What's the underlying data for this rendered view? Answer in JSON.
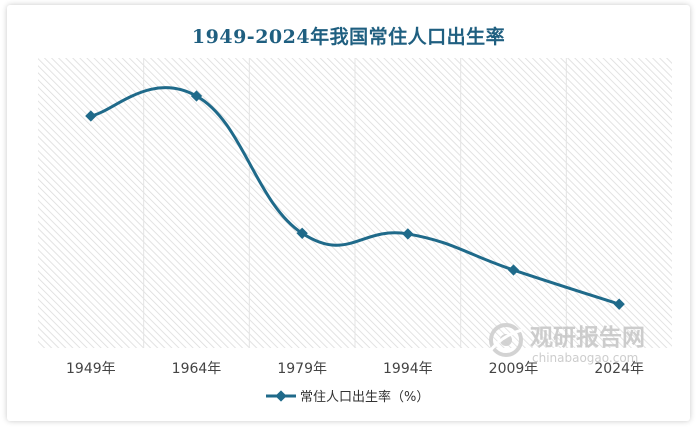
{
  "chart_data": {
    "type": "line",
    "title": "1949-2024年我国常住人口出生率",
    "categories": [
      "1949年",
      "1964年",
      "1979年",
      "1994年",
      "2009年",
      "2024年"
    ],
    "series": [
      {
        "name": "常住人口出生率（%）",
        "values": [
          36.0,
          39.1,
          17.8,
          17.7,
          12.1,
          6.8
        ],
        "color": "#1f6a8a"
      }
    ],
    "ylim": [
      0,
      45
    ],
    "grid": "vertical-hatched",
    "legend": "bottom",
    "smooth": true
  },
  "watermark": {
    "brand": "观研报告网",
    "url": "chinabaogao.com"
  }
}
